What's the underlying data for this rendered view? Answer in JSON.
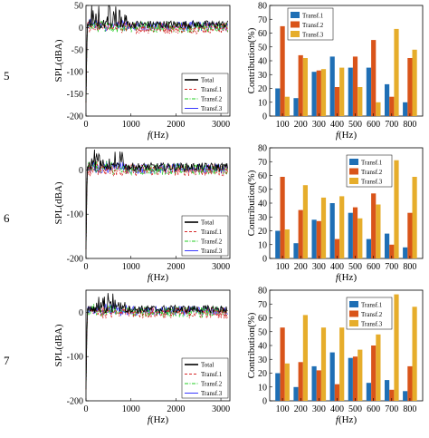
{
  "rows": [
    {
      "label": "5",
      "spl": {
        "xlim": [
          0,
          3200
        ],
        "ylim": [
          -200,
          50
        ],
        "xticks": [
          "0",
          "1000",
          "2000",
          "3000"
        ],
        "xtick_values": [
          0,
          1000,
          2000,
          3000
        ],
        "yticks": [
          "50",
          "0",
          "-50",
          "-100",
          "-150",
          "-200"
        ],
        "ytick_values": [
          50,
          0,
          -50,
          -100,
          -150,
          -200
        ],
        "ylabel": "SPL(dBA)",
        "xlabel": "f(Hz)",
        "legend": [
          "Total",
          "Transf.1",
          "Transf.2",
          "Transf.3"
        ],
        "peak_max": 45,
        "noise_level": 5,
        "start_min": -170
      },
      "bar": {
        "categories": [
          "100",
          "200",
          "300",
          "400",
          "500",
          "600",
          "700",
          "800"
        ],
        "ylim": [
          0,
          80
        ],
        "yticks": [
          "0",
          "10",
          "20",
          "30",
          "40",
          "50",
          "60",
          "70",
          "80"
        ],
        "ylabel": "Contribution(%)",
        "xlabel": "f(Hz)",
        "legend": [
          "Transf.1",
          "Transf.2",
          "Transf.3"
        ],
        "series": [
          {
            "name": "Transf.1",
            "values": [
              20,
              13,
              32,
              43,
              35,
              35,
              23,
              10
            ]
          },
          {
            "name": "Transf.2",
            "values": [
              65,
              44,
              33,
              21,
              43,
              55,
              14,
              42
            ]
          },
          {
            "name": "Transf.3",
            "values": [
              14,
              42,
              34,
              35,
              21,
              10,
              63,
              48
            ]
          }
        ]
      }
    },
    {
      "label": "6",
      "spl": {
        "xlim": [
          0,
          3200
        ],
        "ylim": [
          -200,
          50
        ],
        "xticks": [
          "0",
          "1000",
          "2000",
          "3000"
        ],
        "xtick_values": [
          0,
          1000,
          2000,
          3000
        ],
        "yticks": [
          "0",
          "-100",
          "-200"
        ],
        "ytick_values": [
          0,
          -100,
          -200
        ],
        "ylabel": "SPL(dBA)",
        "xlabel": "f(Hz)",
        "legend": [
          "Total",
          "Transf.1",
          "Transf.2",
          "Transf.3"
        ],
        "peak_max": 40,
        "noise_level": 5,
        "start_min": -180
      },
      "bar": {
        "categories": [
          "100",
          "200",
          "300",
          "400",
          "500",
          "600",
          "700",
          "800"
        ],
        "ylim": [
          0,
          80
        ],
        "yticks": [
          "0",
          "10",
          "20",
          "30",
          "40",
          "50",
          "60",
          "70",
          "80"
        ],
        "ylabel": "Contribution(%)",
        "xlabel": "f(Hz)",
        "legend": [
          "Transf.1",
          "Transf.2",
          "Transf.3"
        ],
        "series": [
          {
            "name": "Transf.1",
            "values": [
              20,
              11,
              28,
              40,
              33,
              14,
              18,
              8
            ]
          },
          {
            "name": "Transf.2",
            "values": [
              59,
              35,
              27,
              14,
              37,
              47,
              10,
              33
            ]
          },
          {
            "name": "Transf.3",
            "values": [
              21,
              53,
              44,
              45,
              29,
              39,
              71,
              59
            ]
          }
        ]
      }
    },
    {
      "label": "7",
      "spl": {
        "xlim": [
          0,
          3200
        ],
        "ylim": [
          -200,
          50
        ],
        "xticks": [
          "0",
          "1000",
          "2000",
          "3000"
        ],
        "xtick_values": [
          0,
          1000,
          2000,
          3000
        ],
        "yticks": [
          "0",
          "-100",
          "-200"
        ],
        "ytick_values": [
          0,
          -100,
          -200
        ],
        "ylabel": "SPL(dBA)",
        "xlabel": "f(Hz)",
        "legend": [
          "Total",
          "Transf.1",
          "Transf.2",
          "Transf.3"
        ],
        "peak_max": 45,
        "noise_level": 5,
        "start_min": -175
      },
      "bar": {
        "categories": [
          "100",
          "200",
          "300",
          "400",
          "500",
          "600",
          "700",
          "800"
        ],
        "ylim": [
          0,
          80
        ],
        "yticks": [
          "0",
          "10",
          "20",
          "30",
          "40",
          "50",
          "60",
          "70",
          "80"
        ],
        "ylabel": "Contribution(%)",
        "xlabel": "f(Hz)",
        "legend": [
          "Transf.1",
          "Transf.2",
          "Transf.3"
        ],
        "series": [
          {
            "name": "Transf.1",
            "values": [
              20,
              10,
              25,
              35,
              31,
              13,
              15,
              7
            ]
          },
          {
            "name": "Transf.2",
            "values": [
              53,
              28,
              22,
              12,
              32,
              40,
              8,
              25
            ]
          },
          {
            "name": "Transf.3",
            "values": [
              27,
              62,
              53,
              53,
              37,
              48,
              77,
              68
            ]
          }
        ]
      }
    }
  ],
  "colors": {
    "total": "#000000",
    "transf1_line": "#d62728",
    "transf2_line": "#22cc22",
    "transf3_line": "#3a3aff",
    "bar1": "#1f6fb5",
    "bar2": "#d9541a",
    "bar3": "#e6ad2b"
  },
  "chart_data": [
    {
      "type": "line",
      "panel": "row5-spl",
      "ylabel": "SPL(dBA)",
      "xlabel": "f(Hz)",
      "xlim": [
        0,
        3200
      ],
      "ylim": [
        -200,
        50
      ],
      "legend": [
        "Total",
        "Transf.1",
        "Transf.2",
        "Transf.3"
      ]
    },
    {
      "type": "bar",
      "panel": "row5-contribution",
      "categories": [
        "100",
        "200",
        "300",
        "400",
        "500",
        "600",
        "700",
        "800"
      ],
      "series": [
        {
          "name": "Transf.1",
          "values": [
            20,
            13,
            32,
            43,
            35,
            35,
            23,
            10
          ]
        },
        {
          "name": "Transf.2",
          "values": [
            65,
            44,
            33,
            21,
            43,
            55,
            14,
            42
          ]
        },
        {
          "name": "Transf.3",
          "values": [
            14,
            42,
            34,
            35,
            21,
            10,
            63,
            48
          ]
        }
      ],
      "ylabel": "Contribution(%)",
      "xlabel": "f(Hz)",
      "ylim": [
        0,
        80
      ]
    },
    {
      "type": "line",
      "panel": "row6-spl",
      "ylabel": "SPL(dBA)",
      "xlabel": "f(Hz)",
      "xlim": [
        0,
        3200
      ],
      "ylim": [
        -200,
        50
      ],
      "legend": [
        "Total",
        "Transf.1",
        "Transf.2",
        "Transf.3"
      ]
    },
    {
      "type": "bar",
      "panel": "row6-contribution",
      "categories": [
        "100",
        "200",
        "300",
        "400",
        "500",
        "600",
        "700",
        "800"
      ],
      "series": [
        {
          "name": "Transf.1",
          "values": [
            20,
            11,
            28,
            40,
            33,
            14,
            18,
            8
          ]
        },
        {
          "name": "Transf.2",
          "values": [
            59,
            35,
            27,
            14,
            37,
            47,
            10,
            33
          ]
        },
        {
          "name": "Transf.3",
          "values": [
            21,
            53,
            44,
            45,
            29,
            39,
            71,
            59
          ]
        }
      ],
      "ylabel": "Contribution(%)",
      "xlabel": "f(Hz)",
      "ylim": [
        0,
        80
      ]
    },
    {
      "type": "line",
      "panel": "row7-spl",
      "ylabel": "SPL(dBA)",
      "xlabel": "f(Hz)",
      "xlim": [
        0,
        3200
      ],
      "ylim": [
        -200,
        50
      ],
      "legend": [
        "Total",
        "Transf.1",
        "Transf.2",
        "Transf.3"
      ]
    },
    {
      "type": "bar",
      "panel": "row7-contribution",
      "categories": [
        "100",
        "200",
        "300",
        "400",
        "500",
        "600",
        "700",
        "800"
      ],
      "series": [
        {
          "name": "Transf.1",
          "values": [
            20,
            10,
            25,
            35,
            31,
            13,
            15,
            7
          ]
        },
        {
          "name": "Transf.2",
          "values": [
            53,
            28,
            22,
            12,
            32,
            40,
            8,
            25
          ]
        },
        {
          "name": "Transf.3",
          "values": [
            27,
            62,
            53,
            53,
            37,
            48,
            77,
            68
          ]
        }
      ],
      "ylabel": "Contribution(%)",
      "xlabel": "f(Hz)",
      "ylim": [
        0,
        80
      ]
    }
  ]
}
